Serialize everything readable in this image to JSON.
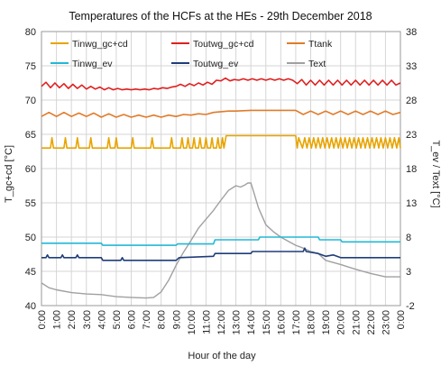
{
  "chart_data": {
    "type": "line",
    "title": "Temperatures of the HCFs at the HEs - 29th December 2018",
    "xlabel": "Hour of the day",
    "ylabel_left": "T_gc+cd [°C]",
    "ylabel_right": "T_ev / Text [°C]",
    "ylim_left": [
      40,
      80
    ],
    "ylim_right": [
      -2,
      38
    ],
    "yticks_left": [
      "40",
      "45",
      "50",
      "55",
      "60",
      "65",
      "70",
      "75",
      "80"
    ],
    "yticks_right": [
      "-2",
      "3",
      "8",
      "13",
      "18",
      "23",
      "28",
      "33",
      "38"
    ],
    "x_ticks": [
      "0:00",
      "1:00",
      "2:00",
      "3:00",
      "4:00",
      "5:00",
      "6:00",
      "7:00",
      "8:00",
      "9:00",
      "10:00",
      "11:00",
      "12:00",
      "13:00",
      "14:00",
      "15:00",
      "16:00",
      "17:00",
      "18:00",
      "19:00",
      "20:00",
      "21:00",
      "22:00",
      "23:00",
      "0:00"
    ],
    "grid": true,
    "legend_position": "top",
    "series": [
      {
        "name": "Tinwg_gc+cd",
        "axis": "left",
        "color": "#e8a400",
        "x": [
          0,
          0.6,
          0.7,
          0.8,
          1.5,
          1.6,
          1.7,
          2.3,
          2.4,
          2.5,
          3.2,
          3.3,
          3.4,
          4.4,
          4.5,
          4.6,
          4.9,
          5.0,
          5.1,
          6.0,
          6.1,
          6.2,
          7.3,
          7.4,
          7.5,
          8.6,
          8.7,
          8.8,
          9.3,
          9.4,
          9.5,
          9.7,
          9.8,
          9.9,
          10.1,
          10.2,
          10.3,
          10.5,
          10.6,
          10.7,
          10.9,
          11.0,
          11.1,
          11.3,
          11.4,
          11.5,
          11.7,
          11.8,
          11.9,
          12.0,
          12.1,
          12.2,
          12.35,
          17.0,
          17.1,
          17.2,
          17.45,
          17.6,
          17.75,
          17.9,
          18.05,
          18.2,
          18.35,
          18.5,
          18.65,
          18.8,
          18.95,
          19.1,
          19.25,
          19.4,
          19.55,
          19.7,
          19.85,
          20.0,
          20.15,
          20.3,
          20.45,
          20.6,
          20.75,
          20.9,
          21.05,
          21.2,
          21.35,
          21.5,
          21.65,
          21.8,
          21.95,
          22.1,
          22.25,
          22.4,
          22.55,
          22.7,
          22.85,
          23.0,
          23.15,
          23.3,
          23.45,
          23.6,
          23.75,
          23.9,
          24
        ],
        "values": [
          63,
          63,
          64.5,
          63,
          63,
          64.5,
          63,
          63,
          64.5,
          63,
          63,
          64.5,
          63,
          63,
          64.5,
          63,
          63,
          64.5,
          63,
          63,
          64.5,
          63,
          63,
          64.5,
          63,
          63,
          64.5,
          63,
          63,
          64.5,
          63,
          63,
          64.5,
          63,
          63,
          64.5,
          63,
          63,
          64.5,
          63,
          63,
          64.5,
          63,
          63,
          64.5,
          63,
          63,
          64.5,
          63,
          63,
          64.5,
          63,
          64.8,
          64.8,
          63,
          64.5,
          63,
          64.5,
          63,
          64.5,
          63,
          64.5,
          63,
          64.5,
          63,
          64.5,
          63,
          64.5,
          63,
          64.5,
          63,
          64.5,
          63,
          64.5,
          63,
          64.5,
          63,
          64.5,
          63,
          64.5,
          63,
          64.5,
          63,
          64.5,
          63,
          64.5,
          63,
          64.5,
          63,
          64.5,
          63,
          64.5,
          63,
          64.5,
          63,
          64.5,
          63,
          64.5,
          63,
          64.5,
          63
        ]
      },
      {
        "name": "Toutwg_gc+cd",
        "axis": "left",
        "color": "#e02020",
        "x": [
          0,
          0.3,
          0.6,
          0.9,
          1.2,
          1.5,
          1.8,
          2.1,
          2.4,
          2.7,
          3.0,
          3.3,
          3.6,
          3.9,
          4.2,
          4.5,
          4.8,
          5.1,
          5.4,
          5.7,
          6.0,
          6.3,
          6.6,
          6.9,
          7.2,
          7.5,
          7.8,
          8.1,
          8.4,
          8.7,
          9.0,
          9.3,
          9.6,
          9.9,
          10.2,
          10.5,
          10.8,
          11.1,
          11.4,
          11.7,
          12.0,
          12.3,
          12.6,
          12.9,
          13.2,
          13.5,
          13.8,
          14.1,
          14.4,
          14.7,
          15.0,
          15.3,
          15.6,
          15.9,
          16.2,
          16.5,
          16.8,
          17.1,
          17.4,
          17.7,
          18.0,
          18.3,
          18.6,
          18.9,
          19.2,
          19.5,
          19.8,
          20.1,
          20.4,
          20.7,
          21.0,
          21.3,
          21.6,
          21.9,
          22.2,
          22.5,
          22.8,
          23.1,
          23.4,
          23.7,
          24
        ],
        "values": [
          72,
          72.6,
          71.8,
          72.5,
          71.8,
          72.4,
          71.7,
          72.3,
          71.7,
          72.2,
          71.6,
          72.0,
          71.6,
          71.9,
          71.5,
          71.8,
          71.5,
          71.7,
          71.5,
          71.6,
          71.5,
          71.6,
          71.5,
          71.6,
          71.5,
          71.7,
          71.6,
          71.8,
          71.7,
          71.9,
          72.0,
          72.3,
          72.0,
          72.4,
          72.1,
          72.5,
          72.2,
          72.6,
          72.3,
          72.9,
          72.8,
          73.2,
          72.8,
          73.0,
          72.9,
          73.1,
          72.9,
          73.1,
          72.9,
          73.1,
          72.9,
          73.1,
          72.9,
          73.1,
          72.9,
          73.1,
          72.9,
          72.4,
          73.0,
          72.2,
          72.9,
          72.2,
          72.9,
          72.2,
          72.9,
          72.2,
          72.9,
          72.2,
          72.9,
          72.2,
          72.9,
          72.2,
          72.9,
          72.2,
          72.9,
          72.2,
          72.9,
          72.2,
          72.9,
          72.2,
          72.5
        ]
      },
      {
        "name": "Ttank",
        "axis": "left",
        "color": "#e07b2a",
        "x": [
          0,
          0.5,
          1.0,
          1.5,
          2.0,
          2.5,
          3.0,
          3.5,
          4.0,
          4.5,
          5.0,
          5.5,
          6.0,
          6.5,
          7.0,
          7.5,
          8.0,
          8.5,
          9.0,
          9.5,
          10.0,
          10.5,
          11.0,
          11.5,
          12.0,
          12.5,
          13.0,
          14.0,
          15.0,
          16.0,
          17.0,
          17.5,
          18.0,
          18.5,
          19.0,
          19.5,
          20.0,
          20.5,
          21.0,
          21.5,
          22.0,
          22.5,
          23.0,
          23.5,
          24
        ],
        "values": [
          67.6,
          68.2,
          67.6,
          68.2,
          67.6,
          68.1,
          67.6,
          68.1,
          67.5,
          68.0,
          67.5,
          67.9,
          67.5,
          67.8,
          67.5,
          67.8,
          67.5,
          67.8,
          67.6,
          67.9,
          67.8,
          68.0,
          67.9,
          68.2,
          68.3,
          68.4,
          68.4,
          68.5,
          68.5,
          68.5,
          68.5,
          67.9,
          68.4,
          67.9,
          68.4,
          67.9,
          68.4,
          67.9,
          68.4,
          67.9,
          68.4,
          67.9,
          68.4,
          67.9,
          68.2
        ]
      },
      {
        "name": "Tinwg_ev",
        "axis": "right",
        "color": "#22b8d8",
        "x": [
          0,
          4.0,
          4.1,
          9.0,
          9.1,
          11.5,
          11.6,
          14.5,
          14.6,
          18.5,
          18.6,
          20.0,
          20.1,
          24
        ],
        "values": [
          7.1,
          7.1,
          6.8,
          6.8,
          7.0,
          7.0,
          7.6,
          7.6,
          8.0,
          8.0,
          7.6,
          7.6,
          7.3,
          7.3
        ]
      },
      {
        "name": "Toutwg_ev",
        "axis": "right",
        "color": "#1f3d7a",
        "x": [
          0,
          0.3,
          0.4,
          0.5,
          1.3,
          1.4,
          1.5,
          2.3,
          2.4,
          2.5,
          4.0,
          4.1,
          5.3,
          5.4,
          5.5,
          9.0,
          9.2,
          11.5,
          11.6,
          14.0,
          14.1,
          17.5,
          17.6,
          17.7,
          18.5,
          19.0,
          19.5,
          20.0,
          24
        ],
        "values": [
          5.0,
          5.0,
          5.4,
          5.0,
          5.0,
          5.4,
          5.0,
          5.0,
          5.4,
          5.0,
          5.0,
          4.6,
          4.6,
          5.0,
          4.6,
          4.6,
          5.0,
          5.2,
          5.6,
          5.6,
          5.9,
          5.9,
          6.4,
          5.9,
          5.6,
          5.2,
          5.4,
          5.0,
          5.0
        ]
      },
      {
        "name": "Text",
        "axis": "right",
        "color": "#a0a0a0",
        "x": [
          0,
          0.5,
          1.0,
          2.0,
          3.0,
          4.0,
          5.0,
          6.0,
          7.0,
          7.5,
          8.0,
          8.5,
          9.0,
          9.5,
          10.0,
          10.5,
          11.0,
          11.5,
          12.0,
          12.5,
          13.0,
          13.3,
          13.6,
          13.8,
          14.0,
          14.2,
          14.5,
          15.0,
          15.5,
          16.0,
          16.5,
          17.0,
          17.5,
          18.0,
          18.5,
          19.0,
          20.0,
          21.0,
          22.0,
          23.0,
          24
        ],
        "values": [
          1.3,
          0.6,
          0.3,
          -0.1,
          -0.3,
          -0.4,
          -0.7,
          -0.8,
          -0.9,
          -0.8,
          0.0,
          1.7,
          3.9,
          5.8,
          7.5,
          9.3,
          10.6,
          11.9,
          13.4,
          14.8,
          15.5,
          15.3,
          15.6,
          15.9,
          15.9,
          14.5,
          12.3,
          9.8,
          8.8,
          8.0,
          7.4,
          6.8,
          6.4,
          5.9,
          5.6,
          4.6,
          4.0,
          3.3,
          2.7,
          2.2,
          2.2
        ]
      }
    ]
  }
}
